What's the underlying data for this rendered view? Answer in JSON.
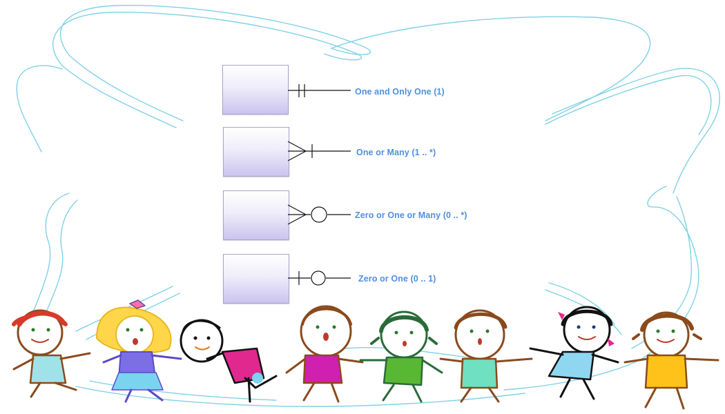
{
  "notations": [
    {
      "symbol": "one-and-only-one",
      "label": "One and Only One (1)"
    },
    {
      "symbol": "one-or-many",
      "label": "One or Many (1 .. *)"
    },
    {
      "symbol": "zero-or-one-or-many",
      "label": "Zero or One or Many (0 .. *)"
    },
    {
      "symbol": "zero-or-one",
      "label": "Zero or One (0 .. 1)"
    }
  ],
  "colors": {
    "frame_scribble": "#7fd1e6",
    "label_text": "#4f8fe0",
    "entity_gradient_top": "#ffffff",
    "entity_gradient_bottom": "#cbc3ef",
    "line": "#111111"
  },
  "decoration": {
    "children_count": 8,
    "children_shirt_colors": [
      "#9fe3e8",
      "#7c6fe6",
      "#e0288f",
      "#d020b0",
      "#59b833",
      "#6fe0c0",
      "#8fd6f0",
      "#ffc21a"
    ]
  }
}
